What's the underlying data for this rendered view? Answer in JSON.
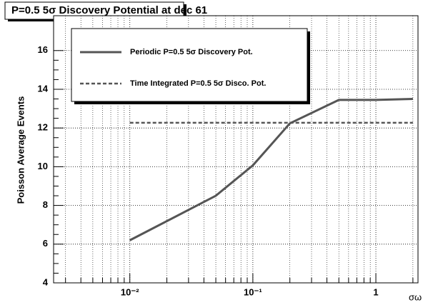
{
  "chart_data": {
    "type": "line",
    "title": "P=0.5 5σ Discovery Potential at dec 61",
    "y_label": "Poisson Average Events",
    "x_label": "σω",
    "log_x": true,
    "grid": true,
    "xlim": [
      0.0024,
      2.2
    ],
    "xticks": [
      {
        "value": 0.01,
        "label": "10⁻²"
      },
      {
        "value": 0.1,
        "label": "10⁻¹"
      },
      1
    ],
    "ylim": [
      4,
      17.8
    ],
    "yticks": [
      4,
      6,
      8,
      10,
      12,
      14,
      16
    ],
    "legend": "top-left",
    "series": [
      {
        "name": "Periodic P=0.5 5σ Discovery Pot.",
        "color": "#555555",
        "dash": false,
        "x": [
          0.01,
          0.05,
          0.1,
          0.2,
          0.5,
          1,
          2
        ],
        "values": [
          6.2,
          8.5,
          10.07,
          12.24,
          13.45,
          13.45,
          13.5
        ]
      },
      {
        "name": "Time Integrated P=0.5 5σ Disco. Pot.",
        "color": "#555555",
        "dash": true,
        "x": [
          0.01,
          2
        ],
        "values": [
          12.27,
          12.27
        ]
      }
    ]
  }
}
